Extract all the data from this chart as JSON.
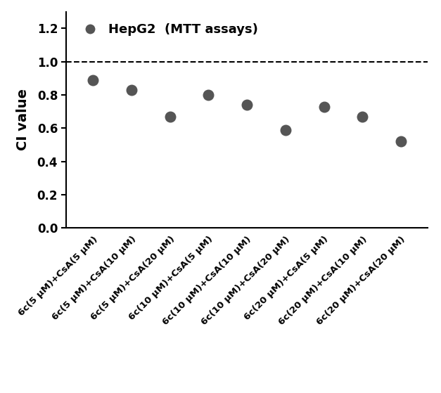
{
  "x_positions": [
    1,
    2,
    3,
    4,
    5,
    6,
    7,
    8,
    9
  ],
  "y_values": [
    0.89,
    0.83,
    0.67,
    0.8,
    0.74,
    0.59,
    0.73,
    0.67,
    0.52
  ],
  "x_labels": [
    "6c(5 μM)+CsA(5 μM)",
    "6c(5 μM)+CsA(10 μM)",
    "6c(5 μM)+CsA(20 μM)",
    "6c(10 μM)+CsA(5 μM)",
    "6c(10 μM)+CsA(10 μM)",
    "6c(10 μM)+CsA(20 μM)",
    "6c(20 μM)+CsA(5 μM)",
    "6c(20 μM)+CsA(10 μM)",
    "6c(20 μM)+CsA(20 μM)"
  ],
  "ylabel": "CI value",
  "ylim": [
    0.0,
    1.3
  ],
  "yticks": [
    0.0,
    0.2,
    0.4,
    0.6,
    0.8,
    1.0,
    1.2
  ],
  "hline_y": 1.0,
  "dot_color": "#555555",
  "dot_size": 110,
  "legend_label": "HepG2  (MTT assays)",
  "legend_marker_color": "#555555",
  "figsize": [
    6.27,
    5.59
  ],
  "dpi": 100
}
